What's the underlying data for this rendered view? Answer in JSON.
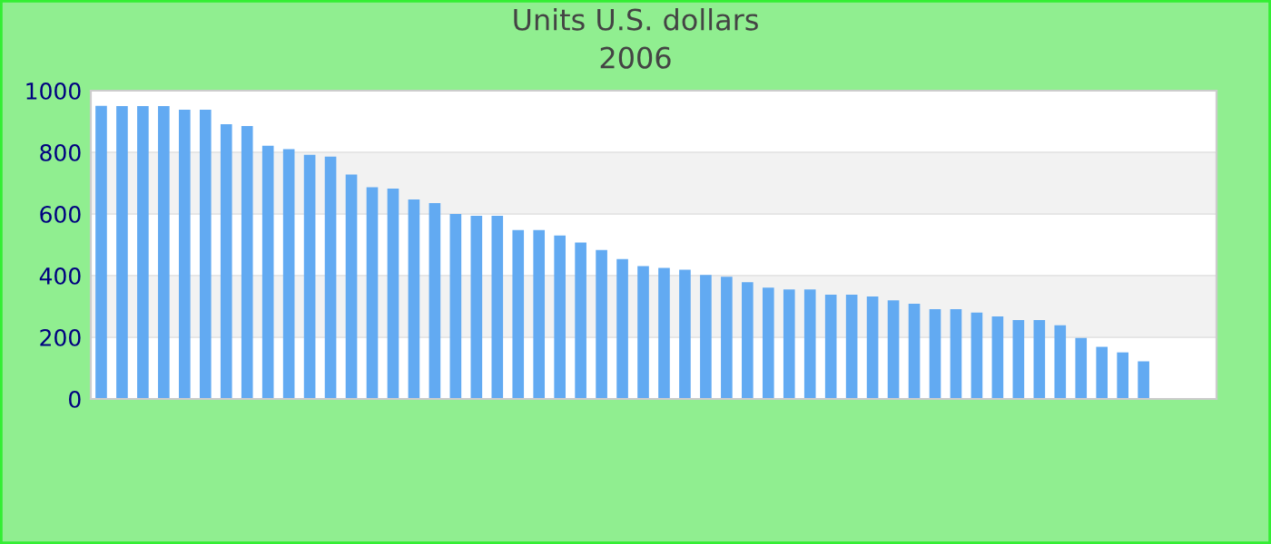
{
  "chart_data": {
    "type": "bar",
    "title": "Units U.S. dollars",
    "subtitle": "2006",
    "categories": [
      null,
      null,
      null,
      null,
      null,
      null,
      null,
      null,
      null,
      null,
      null,
      null,
      null,
      null,
      null,
      null,
      null,
      null,
      null,
      null,
      null,
      null,
      null,
      null,
      null,
      null,
      null,
      null,
      null,
      null,
      null,
      null,
      null,
      null,
      null,
      null,
      null,
      null,
      null,
      null,
      null,
      null,
      null,
      null,
      null,
      null,
      null,
      null,
      null,
      null,
      null,
      null,
      null,
      null
    ],
    "values": [
      951,
      950,
      950,
      950,
      938,
      938,
      891,
      885,
      821,
      810,
      792,
      786,
      728,
      687,
      682,
      647,
      635,
      600,
      594,
      594,
      548,
      548,
      530,
      507,
      483,
      454,
      431,
      425,
      419,
      402,
      396,
      379,
      361,
      355,
      355,
      338,
      338,
      332,
      320,
      309,
      291,
      291,
      280,
      268,
      256,
      256,
      239,
      198,
      169,
      151,
      122,
      null,
      null,
      null
    ],
    "color": "#62aaf2",
    "ylim": [
      0,
      1000
    ],
    "yticks": [
      0,
      200,
      400,
      600,
      800,
      1000
    ],
    "grid": "y"
  }
}
